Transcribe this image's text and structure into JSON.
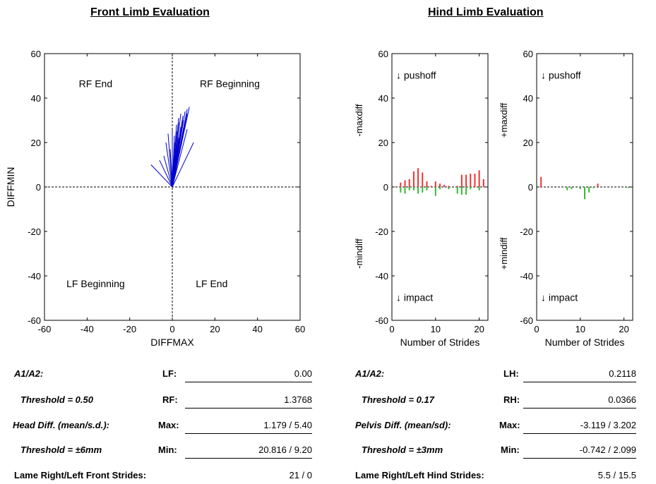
{
  "front": {
    "title": "Front Limb Evaluation",
    "stats": [
      {
        "label": "A1/A2:",
        "key": "LF:",
        "value": "0.00",
        "underline": true
      },
      {
        "label": "Threshold = 0.50",
        "key": "RF:",
        "value": "1.3768",
        "underline": true
      },
      {
        "label": "Head Diff. (mean/s.d.):",
        "key": "Max:",
        "value": "1.179 / 5.40",
        "underline": true
      },
      {
        "label": "Threshold = ±6mm",
        "key": "Min:",
        "value": "20.816 / 9.20",
        "underline": true
      },
      {
        "label": "Lame Right/Left Front Strides:",
        "key": "",
        "value": "21 / 0",
        "underline": false
      }
    ]
  },
  "hind": {
    "title": "Hind Limb Evaluation",
    "stats": [
      {
        "label": "A1/A2:",
        "key": "LH:",
        "value": "0.2118",
        "underline": true
      },
      {
        "label": "Threshold = 0.17",
        "key": "RH:",
        "value": "0.0366",
        "underline": true
      },
      {
        "label": "Pelvis Diff. (mean/sd):",
        "key": "Max:",
        "value": "-3.119 / 3.202",
        "underline": true
      },
      {
        "label": "Threshold = ±3mm",
        "key": "Min:",
        "value": "-0.742 / 2.099",
        "underline": true
      },
      {
        "label": "Lame Right/Left Hind Strides:",
        "key": "",
        "value": "5.5 / 15.5",
        "underline": false
      }
    ]
  },
  "chart_data": [
    {
      "type": "scatter",
      "subtype": "vectors-from-origin",
      "xlabel": "DIFFMAX",
      "ylabel": "DIFFMIN",
      "xlim": [
        -60,
        60
      ],
      "ylim": [
        -60,
        60
      ],
      "xticks": [
        -60,
        -40,
        -20,
        0,
        20,
        40,
        60
      ],
      "yticks": [
        -60,
        -40,
        -20,
        0,
        20,
        40,
        60
      ],
      "grid": false,
      "reference_lines": "dashed lines at x=0 and y=0",
      "quadrant_labels": {
        "top_left": "RF End",
        "top_right": "RF Beginning",
        "bottom_left": "LF Beginning",
        "bottom_right": "LF End"
      },
      "color": "#0000cc",
      "vectors": [
        [
          -10,
          10
        ],
        [
          -6,
          12
        ],
        [
          -4,
          14
        ],
        [
          -3,
          20
        ],
        [
          -2,
          24
        ],
        [
          -1,
          17
        ],
        [
          0,
          26
        ],
        [
          1,
          23
        ],
        [
          2,
          25
        ],
        [
          2,
          28
        ],
        [
          3,
          29
        ],
        [
          3,
          31
        ],
        [
          4,
          27
        ],
        [
          4,
          33
        ],
        [
          5,
          30
        ],
        [
          5,
          32
        ],
        [
          6,
          34
        ],
        [
          6,
          30
        ],
        [
          7,
          35
        ],
        [
          7,
          33
        ],
        [
          8,
          36
        ],
        [
          7,
          26
        ],
        [
          3,
          22
        ],
        [
          10,
          20
        ],
        [
          1,
          20
        ]
      ]
    },
    {
      "type": "bar",
      "xlabel": "Number of Strides",
      "ylabel_top": "-maxdiff",
      "ylabel_bottom": "-mindiff",
      "annotation_top": "↓ pushoff",
      "annotation_bottom": "↓ impact",
      "xlim": [
        0,
        22
      ],
      "ylim": [
        -60,
        60
      ],
      "xticks": [
        0,
        10,
        20
      ],
      "yticks": [
        -60,
        -40,
        -20,
        0,
        20,
        40,
        60
      ],
      "colors": {
        "positive": "#ee3333",
        "negative": "#33bb33"
      },
      "x": [
        2,
        3,
        4,
        5,
        6,
        7,
        8,
        9,
        10,
        11,
        12,
        13,
        14,
        15,
        16,
        17,
        18,
        19,
        20,
        21
      ],
      "series": [
        {
          "values": [
            2,
            3,
            3.5,
            7,
            8.5,
            6.5,
            2.5,
            0.5,
            2.5,
            1.5,
            1,
            0.5,
            0,
            0.5,
            5.5,
            5.5,
            6,
            6,
            7.5,
            3.5
          ]
        },
        {
          "values": [
            -2.5,
            -3,
            -1.5,
            -1.5,
            -3,
            -2.5,
            -1.5,
            0,
            -4,
            -1,
            0,
            -1,
            0,
            -3,
            -3.5,
            -3.5,
            -1,
            0,
            -1.5,
            0
          ]
        }
      ]
    },
    {
      "type": "bar",
      "xlabel": "Number of Strides",
      "ylabel_top": "+maxdiff",
      "ylabel_bottom": "+mindiff",
      "annotation_top": "↓ pushoff",
      "annotation_bottom": "↓ impact",
      "xlim": [
        0,
        22
      ],
      "ylim": [
        -60,
        60
      ],
      "xticks": [
        0,
        10,
        20
      ],
      "yticks": [
        -60,
        -40,
        -20,
        0,
        20,
        40,
        60
      ],
      "colors": {
        "positive": "#ee3333",
        "negative": "#33bb33"
      },
      "x": [
        1,
        2,
        3,
        4,
        5,
        6,
        7,
        8,
        9,
        10,
        11,
        12,
        13,
        14,
        15,
        16,
        17,
        18,
        19,
        20,
        21
      ],
      "series": [
        {
          "values": [
            4.5,
            0,
            0,
            0,
            0,
            0,
            0,
            0,
            0,
            0,
            0,
            0,
            0,
            1.5,
            0,
            0,
            0,
            0,
            0,
            0,
            0
          ]
        },
        {
          "values": [
            0,
            0,
            0,
            0,
            0,
            0,
            -1.5,
            -1,
            0,
            -1,
            -5.5,
            -2.5,
            -0.5,
            0,
            0,
            0,
            0,
            0,
            0,
            0,
            -0.5
          ]
        }
      ]
    }
  ]
}
